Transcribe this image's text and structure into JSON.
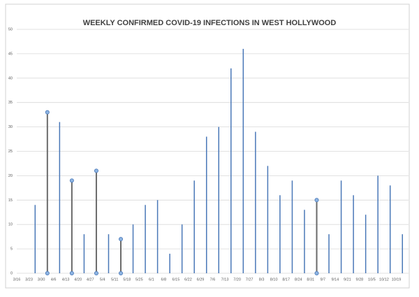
{
  "chart_data": {
    "type": "bar",
    "title": "WEEKLY CONFIRMED COVID-19 INFECTIONS IN WEST HOLLYWOOD",
    "categories": [
      "3/16",
      "3/23",
      "3/30",
      "4/6",
      "4/13",
      "4/20",
      "4/27",
      "5/4",
      "5/11",
      "5/18",
      "5/25",
      "6/1",
      "6/8",
      "6/15",
      "6/22",
      "6/29",
      "7/6",
      "7/13",
      "7/20",
      "7/27",
      "8/3",
      "8/10",
      "8/17",
      "8/24",
      "8/31",
      "9/7",
      "9/14",
      "9/21",
      "9/28",
      "10/5",
      "10/12",
      "10/19"
    ],
    "values": [
      0,
      14,
      33,
      31,
      19,
      8,
      21,
      8,
      7,
      10,
      14,
      15,
      4,
      10,
      19,
      28,
      30,
      42,
      46,
      29,
      22,
      16,
      19,
      13,
      15,
      8,
      19,
      16,
      12,
      20,
      18,
      8
    ],
    "color": "#4a78b8",
    "highlight_color": "#6b6b6b",
    "marker_color": "#8db4e2",
    "highlighted": [
      2,
      4,
      6,
      8,
      24
    ],
    "ylim": [
      0,
      50
    ],
    "yticks": [
      0,
      5,
      10,
      15,
      20,
      25,
      30,
      35,
      40,
      45,
      50
    ],
    "grid": true
  }
}
